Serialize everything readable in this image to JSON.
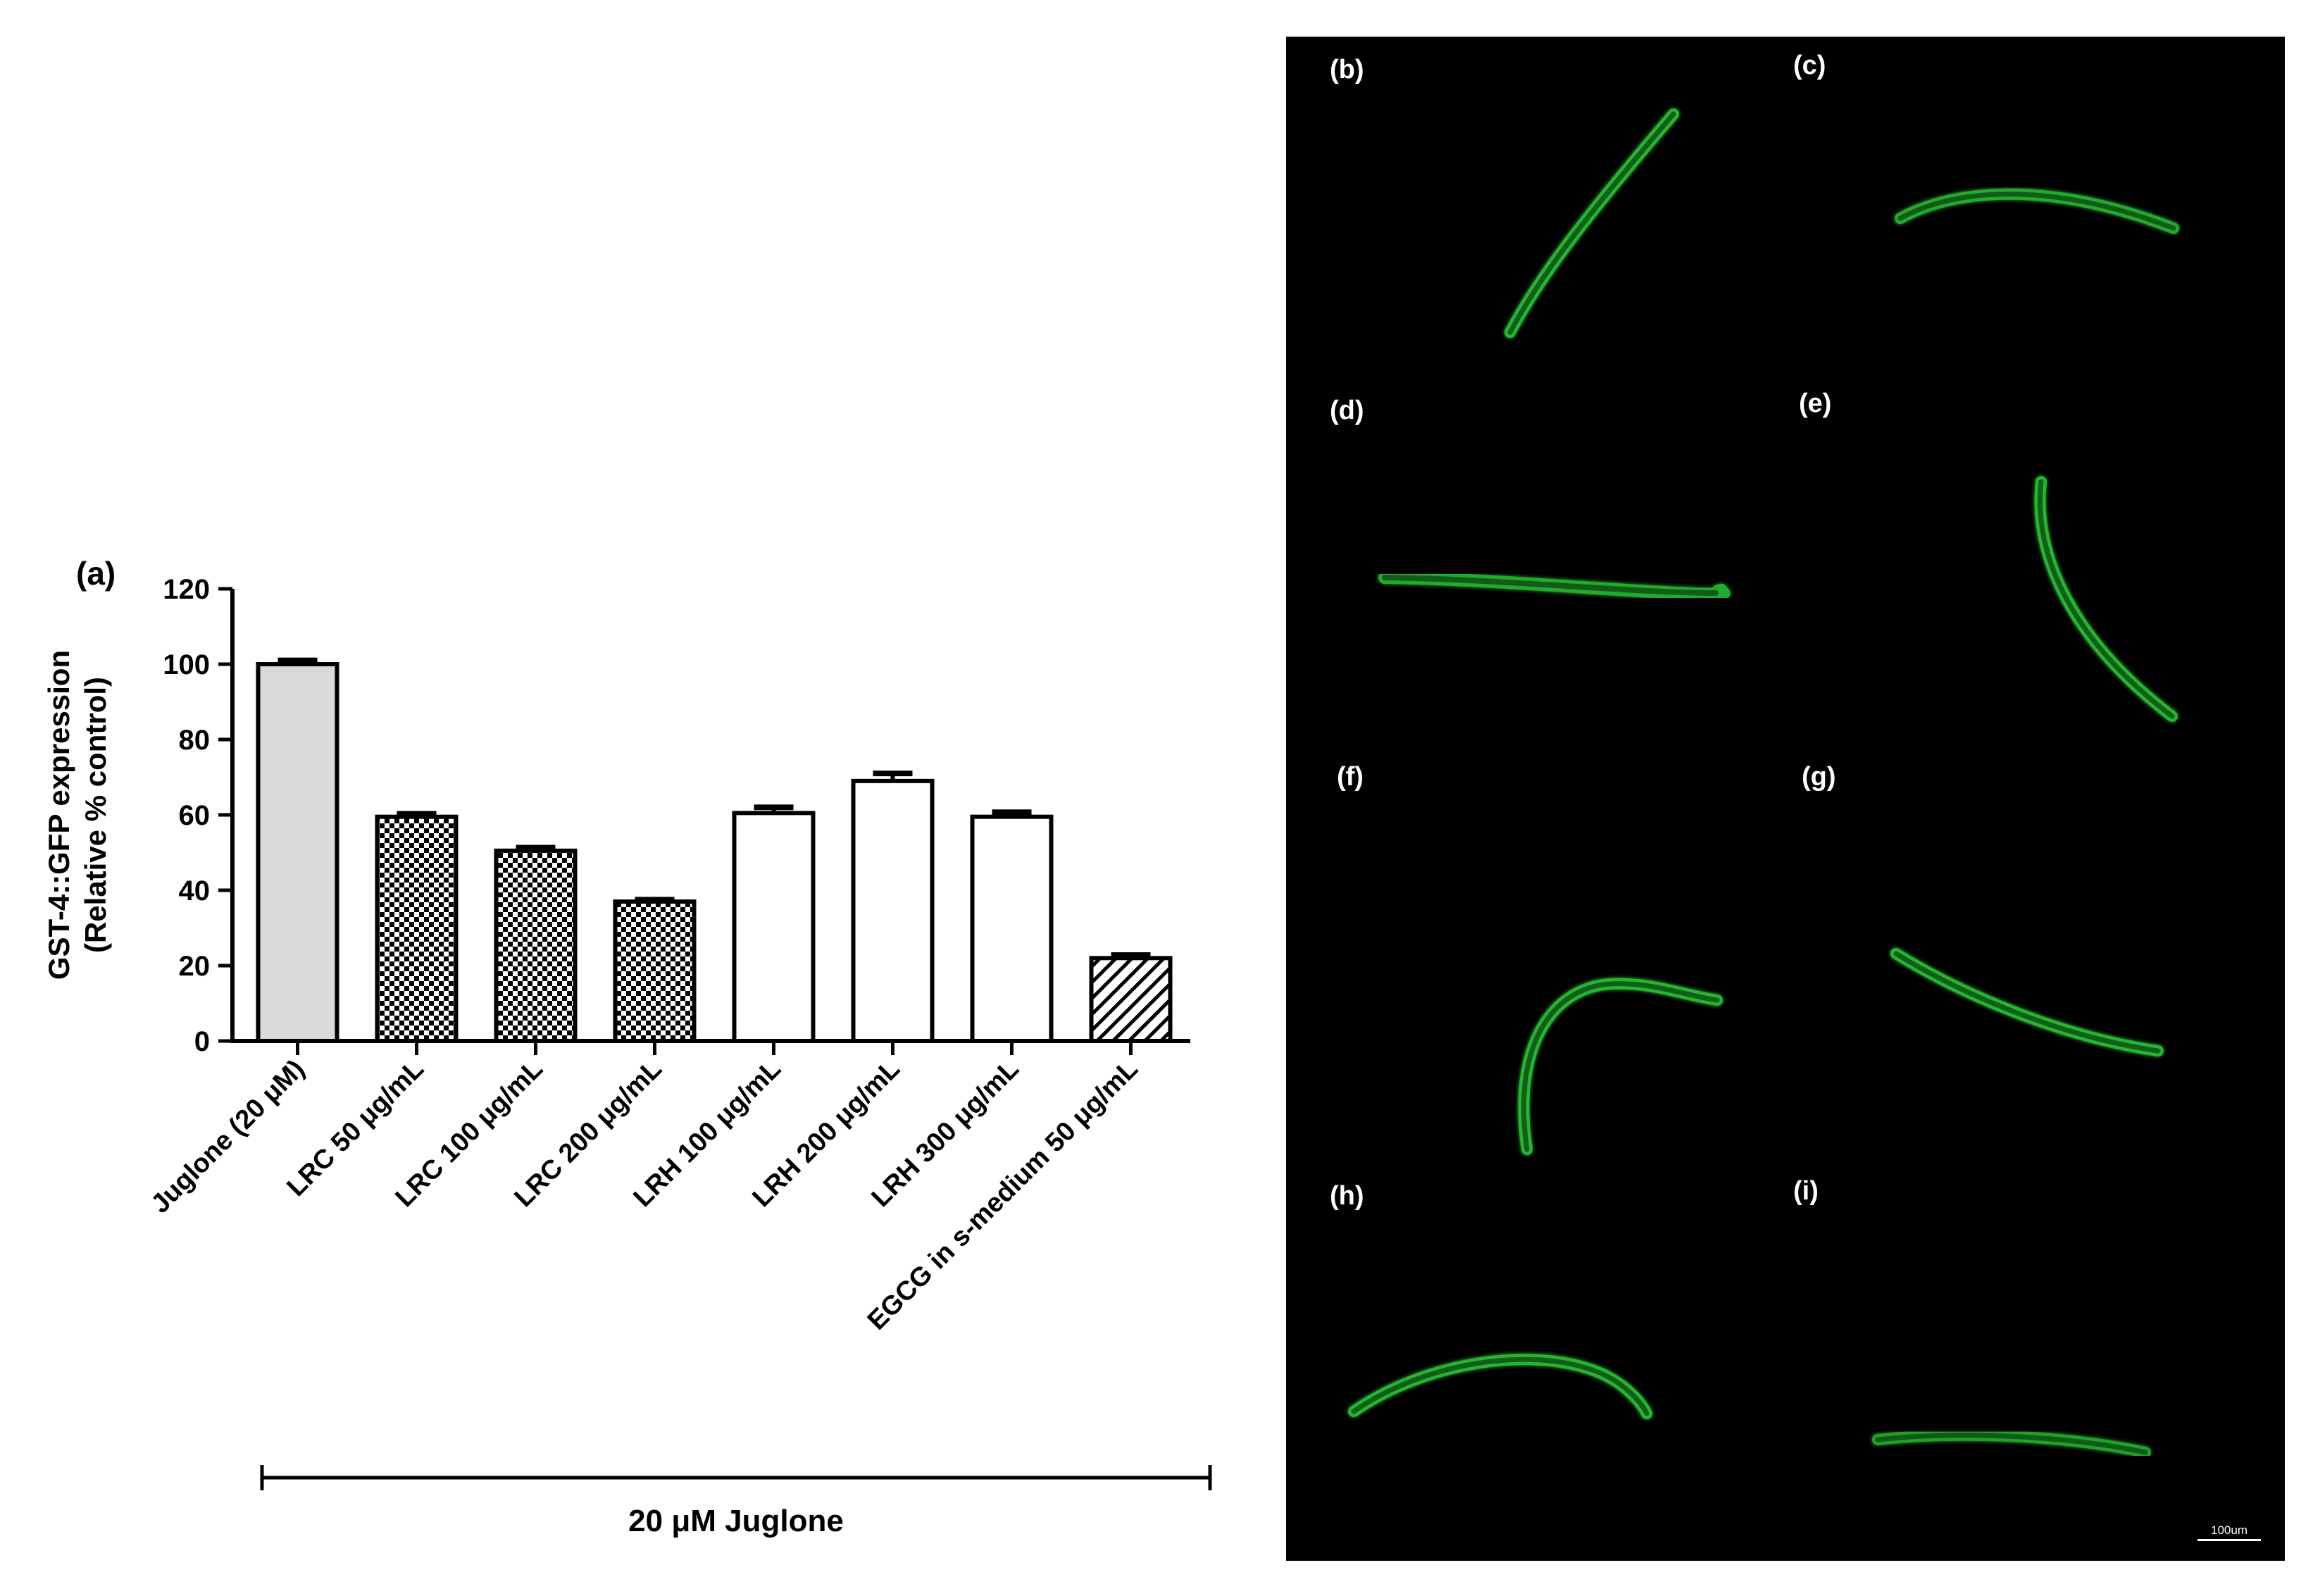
{
  "chart_data": {
    "type": "bar",
    "panel_label": "(a)",
    "title": "",
    "ylabel_line1": "GST-4::GFP expression",
    "ylabel_line2": "(Relative % control)",
    "xlabel": "",
    "ylim": [
      0,
      120
    ],
    "yticks": [
      "0",
      "20",
      "40",
      "60",
      "80",
      "100",
      "120"
    ],
    "categories": [
      "Juglone (20 μM)",
      "LRC 50 μg/mL",
      "LRC 100 μg/mL",
      "LRC 200 μg/mL",
      "LRH 100 μg/mL",
      "LRH 200 μg/mL",
      "LRH 300 μg/mL",
      "EGCG in s-medium 50 μg/mL"
    ],
    "values": [
      100,
      59.5,
      50.5,
      37,
      60.5,
      69,
      59.5,
      22
    ],
    "errors": [
      1,
      0.8,
      0.8,
      0.5,
      1.5,
      2,
      1.2,
      0.8
    ],
    "fills": [
      "gray",
      "checker",
      "checker",
      "checker",
      "white",
      "white",
      "white",
      "hatch"
    ],
    "bracket_label": "20 μM Juglone",
    "grid": false,
    "legend": "none"
  },
  "micrographs": {
    "panels": [
      {
        "label": "(b)"
      },
      {
        "label": "(c)"
      },
      {
        "label": "(d)"
      },
      {
        "label": "(e)"
      },
      {
        "label": "(f)"
      },
      {
        "label": "(g)"
      },
      {
        "label": "(h)"
      },
      {
        "label": "(i)"
      }
    ],
    "scale_bar_label": "100um"
  },
  "colors": {
    "bar_gray": "#d9d9d9",
    "axis": "#000000",
    "micrograph_background": "#000000",
    "gfp_green": "#2fd43a"
  }
}
